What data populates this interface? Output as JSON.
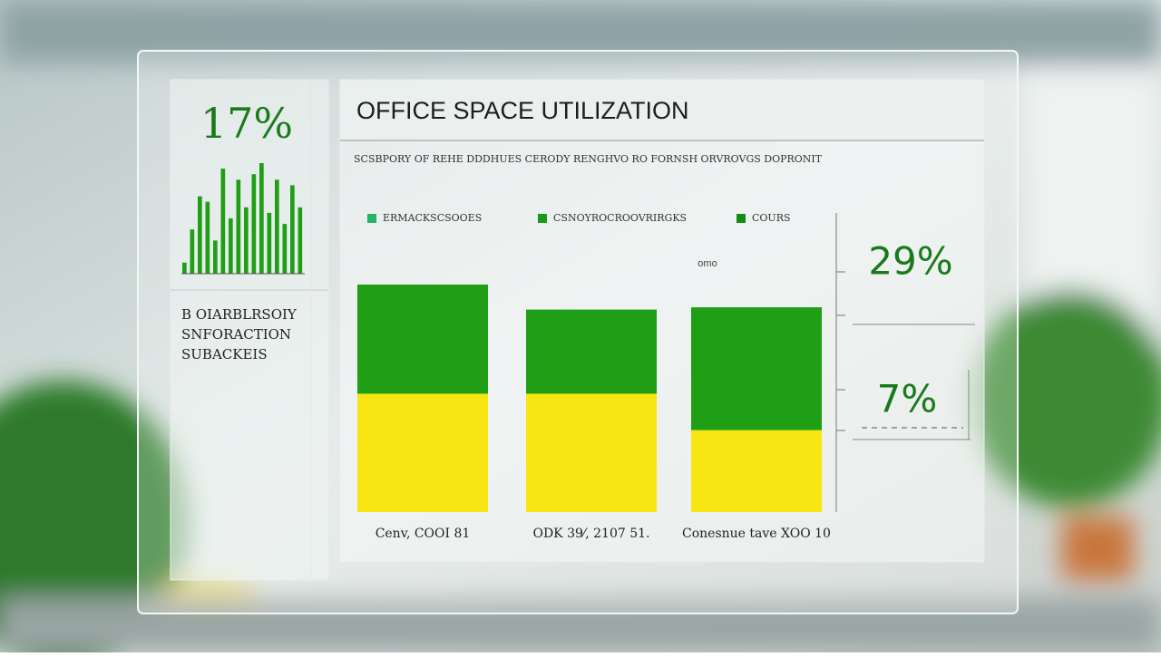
{
  "left_panel": {
    "kpi": "17%",
    "caption": [
      "B OIARBLRSOIY",
      "SNFORACTION",
      "SUBACKEIS"
    ]
  },
  "right_panel": {
    "small_label": "omo",
    "kpi_top": "29%",
    "kpi_bottom": "7%"
  },
  "chart_data": [
    {
      "type": "stacked_bar",
      "title": "OFFICE SPACE UTILIZATION",
      "subtitle": "SCSBPORY OF REHE DDDHUES CERODY RENGHVO RO FORNSH ORVROVGS DOPRONIT",
      "categories": [
        "Cenv, COOI 81",
        "ODK 39⁄, 2107 51.",
        "Conesnue tave XOO 10"
      ],
      "series": [
        {
          "color": "#f7e612",
          "values": [
            52,
            52,
            36
          ]
        },
        {
          "color": "#1f9e16",
          "values": [
            48,
            37,
            54
          ]
        }
      ],
      "legend": [
        {
          "name": "ERMACKSCSOOES",
          "color": "#27b36b"
        },
        {
          "name": "CSNOYROCROOVRIRGKS",
          "color": "#1a9a1a"
        },
        {
          "name": "COURS",
          "color": "#168a16"
        }
      ],
      "ylim": [
        0,
        100
      ]
    },
    {
      "type": "bar",
      "color": "#1f9e16",
      "values": [
        10,
        40,
        70,
        65,
        30,
        95,
        50,
        85,
        60,
        90,
        100,
        55,
        85,
        45,
        80,
        60
      ],
      "ylim": [
        0,
        100
      ]
    }
  ]
}
